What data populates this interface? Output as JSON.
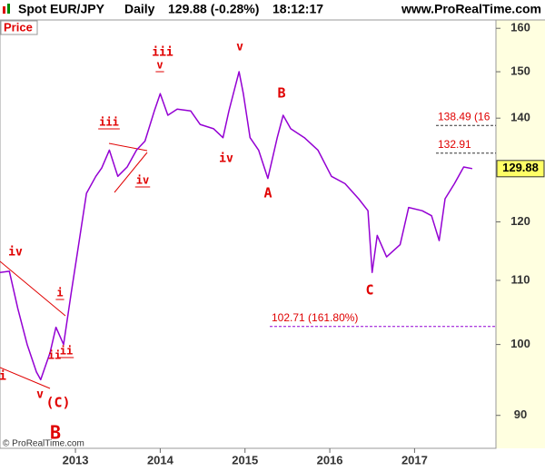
{
  "chart_data": {
    "type": "line",
    "title": "Spot EUR/JPY",
    "period": "Daily",
    "last_change": "129.88 (-0.28%)",
    "time": "18:12:17",
    "source": "www.ProRealTime.com",
    "panel_label": "Price",
    "copyright": "© ProRealTime.com",
    "color": "#9400d3",
    "log_scale": true,
    "grid": false,
    "xlim": [
      2012.11,
      2017.96
    ],
    "xticks": [
      2013,
      2014,
      2015,
      2016,
      2017
    ],
    "ylim": [
      85.7,
      162
    ],
    "yticks": [
      90,
      100,
      110,
      120,
      140,
      150,
      160
    ],
    "x": [
      2012.11,
      2012.22,
      2012.32,
      2012.43,
      2012.54,
      2012.59,
      2012.7,
      2012.77,
      2012.86,
      2012.95,
      2013.02,
      2013.13,
      2013.24,
      2013.31,
      2013.4,
      2013.5,
      2013.61,
      2013.72,
      2013.82,
      2013.93,
      2014.0,
      2014.09,
      2014.2,
      2014.36,
      2014.47,
      2014.63,
      2014.74,
      2014.81,
      2014.88,
      2014.93,
      2014.98,
      2015.06,
      2015.16,
      2015.27,
      2015.38,
      2015.45,
      2015.54,
      2015.7,
      2015.86,
      2016.02,
      2016.18,
      2016.34,
      2016.45,
      2016.5,
      2016.56,
      2016.67,
      2016.83,
      2016.93,
      2017.09,
      2017.2,
      2017.29,
      2017.36,
      2017.47,
      2017.58,
      2017.68
    ],
    "values": [
      111.3,
      111.5,
      105.5,
      100,
      96,
      94.9,
      98.8,
      102.6,
      100,
      108,
      114.3,
      125.2,
      128.4,
      130,
      133.5,
      128.4,
      130.2,
      133.5,
      135.3,
      141.5,
      145.2,
      140.6,
      141.9,
      141.5,
      138.7,
      137.8,
      136,
      141.5,
      146.4,
      150,
      145.2,
      136,
      133.5,
      128,
      136,
      140.6,
      137.8,
      136,
      133.5,
      128.4,
      127,
      124.2,
      122,
      111.3,
      117.6,
      113.9,
      116,
      122.6,
      122,
      121.1,
      116.7,
      124.2,
      127,
      130.2,
      129.88
    ],
    "levels": [
      {
        "value": 138.49,
        "label": "138.49 (16"
      },
      {
        "value": 132.91,
        "label": "132.91"
      },
      {
        "value": 102.71,
        "label": "102.71 (161.80%)"
      }
    ],
    "annotations": [
      "iv",
      "i",
      "v",
      "(C)",
      "B",
      "ii",
      "ii",
      "i",
      "iii",
      "iv",
      "iii",
      "v",
      "v",
      "iv",
      "B",
      "A",
      "C"
    ]
  }
}
